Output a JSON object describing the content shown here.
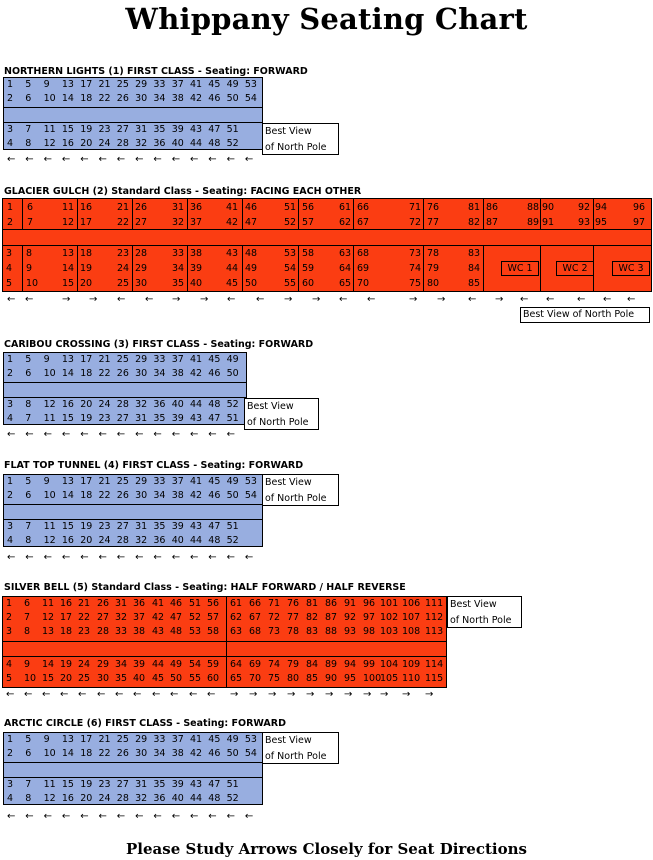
{
  "title": "Whippany Seating Chart",
  "footer": "Please Study Arrows Closely for Seat Directions",
  "best_view_text": "Best View",
  "best_view_text2": "of North Pole",
  "best_view_single": "Best View of North Pole",
  "arrows": {
    "left": "←",
    "right": "→"
  },
  "colors": {
    "first_class": "#98aee0",
    "standard_class": "#fb3d12"
  },
  "cars": [
    {
      "title": "NORTHERN LIGHTS (1) FIRST CLASS - Seating: FORWARD",
      "rows_top": [
        [
          "1",
          "5",
          "9",
          "13",
          "17",
          "21",
          "25",
          "29",
          "33",
          "37",
          "41",
          "45",
          "49",
          "53"
        ],
        [
          "2",
          "6",
          "10",
          "14",
          "18",
          "22",
          "26",
          "30",
          "34",
          "38",
          "42",
          "46",
          "50",
          "54"
        ]
      ],
      "rows_bottom": [
        [
          "3",
          "7",
          "11",
          "15",
          "19",
          "23",
          "27",
          "31",
          "35",
          "39",
          "43",
          "47",
          "51"
        ],
        [
          "4",
          "8",
          "12",
          "16",
          "20",
          "24",
          "28",
          "32",
          "36",
          "40",
          "44",
          "48",
          "52"
        ]
      ],
      "arrow_direction": "left"
    },
    {
      "title": "GLACIER GULCH (2) Standard Class - Seating: FACING EACH OTHER",
      "rows_top": [
        [
          "1",
          "6",
          "11",
          "16",
          "21",
          "26",
          "31",
          "36",
          "41",
          "46",
          "51",
          "56",
          "61",
          "66",
          "71",
          "76",
          "81",
          "86",
          "88",
          "90",
          "92",
          "94",
          "96"
        ],
        [
          "2",
          "7",
          "12",
          "17",
          "22",
          "27",
          "32",
          "37",
          "42",
          "47",
          "52",
          "57",
          "62",
          "67",
          "72",
          "77",
          "82",
          "87",
          "89",
          "91",
          "93",
          "95",
          "97"
        ]
      ],
      "rows_bottom": [
        [
          "3",
          "8",
          "13",
          "18",
          "23",
          "28",
          "33",
          "38",
          "43",
          "48",
          "53",
          "58",
          "63",
          "68",
          "73",
          "78",
          "83"
        ],
        [
          "4",
          "9",
          "14",
          "19",
          "24",
          "29",
          "34",
          "39",
          "44",
          "49",
          "54",
          "59",
          "64",
          "69",
          "74",
          "79",
          "84"
        ],
        [
          "5",
          "10",
          "15",
          "20",
          "25",
          "30",
          "35",
          "40",
          "45",
          "50",
          "55",
          "60",
          "65",
          "70",
          "75",
          "80",
          "85"
        ]
      ],
      "wc": [
        "WC 1",
        "WC 2",
        "WC 3"
      ],
      "arrow_pattern": "facing"
    },
    {
      "title": "CARIBOU CROSSING (3) FIRST CLASS - Seating: FORWARD",
      "rows_top": [
        [
          "1",
          "5",
          "9",
          "13",
          "17",
          "21",
          "25",
          "29",
          "33",
          "37",
          "41",
          "45",
          "49"
        ],
        [
          "2",
          "6",
          "10",
          "14",
          "18",
          "22",
          "26",
          "30",
          "34",
          "38",
          "42",
          "46",
          "50"
        ]
      ],
      "rows_bottom": [
        [
          "3",
          "8",
          "12",
          "16",
          "20",
          "24",
          "28",
          "32",
          "36",
          "40",
          "44",
          "48",
          "52"
        ],
        [
          "4",
          "7",
          "11",
          "15",
          "19",
          "23",
          "27",
          "31",
          "35",
          "39",
          "43",
          "47",
          "51"
        ]
      ],
      "arrow_direction": "left"
    },
    {
      "title": "FLAT TOP TUNNEL (4) FIRST CLASS - Seating: FORWARD",
      "rows_top": [
        [
          "1",
          "5",
          "9",
          "13",
          "17",
          "21",
          "25",
          "29",
          "33",
          "37",
          "41",
          "45",
          "49",
          "53"
        ],
        [
          "2",
          "6",
          "10",
          "14",
          "18",
          "22",
          "26",
          "30",
          "34",
          "38",
          "42",
          "46",
          "50",
          "54"
        ]
      ],
      "rows_bottom": [
        [
          "3",
          "7",
          "11",
          "15",
          "19",
          "23",
          "27",
          "31",
          "35",
          "39",
          "43",
          "47",
          "51"
        ],
        [
          "4",
          "8",
          "12",
          "16",
          "20",
          "24",
          "28",
          "32",
          "36",
          "40",
          "44",
          "48",
          "52"
        ]
      ],
      "arrow_direction": "left"
    },
    {
      "title": "SILVER BELL (5) Standard Class - Seating: HALF FORWARD / HALF REVERSE",
      "rows_top": [
        [
          "1",
          "6",
          "11",
          "16",
          "21",
          "26",
          "31",
          "36",
          "41",
          "46",
          "51",
          "56",
          "61",
          "66",
          "71",
          "76",
          "81",
          "86",
          "91",
          "96",
          "101",
          "106",
          "111"
        ],
        [
          "2",
          "7",
          "12",
          "17",
          "22",
          "27",
          "32",
          "37",
          "42",
          "47",
          "52",
          "57",
          "62",
          "67",
          "72",
          "77",
          "82",
          "87",
          "92",
          "97",
          "102",
          "107",
          "112"
        ],
        [
          "3",
          "8",
          "13",
          "18",
          "23",
          "28",
          "33",
          "38",
          "43",
          "48",
          "53",
          "58",
          "63",
          "68",
          "73",
          "78",
          "83",
          "88",
          "93",
          "98",
          "103",
          "108",
          "113"
        ]
      ],
      "rows_bottom": [
        [
          "4",
          "9",
          "14",
          "19",
          "24",
          "29",
          "34",
          "39",
          "44",
          "49",
          "54",
          "59",
          "64",
          "69",
          "74",
          "79",
          "84",
          "89",
          "94",
          "99",
          "104",
          "109",
          "114"
        ],
        [
          "5",
          "10",
          "15",
          "20",
          "25",
          "30",
          "35",
          "40",
          "45",
          "50",
          "55",
          "60",
          "65",
          "70",
          "75",
          "80",
          "85",
          "90",
          "95",
          "100",
          "105",
          "110",
          "115"
        ]
      ],
      "arrow_pattern": "half"
    },
    {
      "title": "ARCTIC CIRCLE (6) FIRST CLASS - Seating: FORWARD",
      "rows_top": [
        [
          "1",
          "5",
          "9",
          "13",
          "17",
          "21",
          "25",
          "29",
          "33",
          "37",
          "41",
          "45",
          "49",
          "53"
        ],
        [
          "2",
          "6",
          "10",
          "14",
          "18",
          "22",
          "26",
          "30",
          "34",
          "38",
          "42",
          "46",
          "50",
          "54"
        ]
      ],
      "rows_bottom": [
        [
          "3",
          "7",
          "11",
          "15",
          "19",
          "23",
          "27",
          "31",
          "35",
          "39",
          "43",
          "47",
          "51"
        ],
        [
          "4",
          "8",
          "12",
          "16",
          "20",
          "24",
          "28",
          "32",
          "36",
          "40",
          "44",
          "48",
          "52"
        ]
      ],
      "arrow_direction": "left"
    }
  ]
}
